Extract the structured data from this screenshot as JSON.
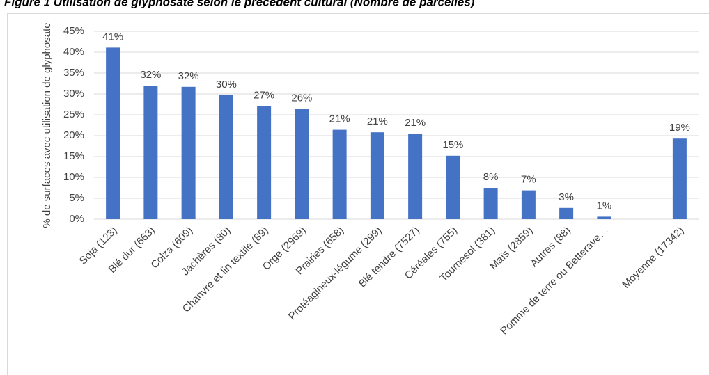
{
  "chart_data": {
    "type": "bar",
    "title": "Figure 1 Utilisation de glyphosate selon le précédent cultural (Nombre de parcelles)",
    "y_label": "% de surfaces avec utilisation de glyphosate",
    "categories": [
      "Soja (123)",
      "Blé dur  (663)",
      "Colza  (609)",
      "Jachères (80)",
      "Chanvre et lin textile (89)",
      "Orge (2969)",
      "Prairies (658)",
      "Protéagineux-légume (299)",
      "Blé tendre (7527)",
      "Céréales (755)",
      "Tournesol (381)",
      "Maïs (2859)",
      "Autres (88)",
      "Pomme de terre ou Betterave…",
      null,
      "Moyenne (17342)"
    ],
    "values": [
      41.1,
      32.0,
      31.7,
      29.7,
      27.1,
      26.4,
      21.4,
      20.8,
      20.5,
      15.2,
      7.5,
      6.9,
      2.7,
      0.6,
      null,
      19.3
    ],
    "value_labels": [
      "41%",
      "32%",
      "32%",
      "30%",
      "27%",
      "26%",
      "21%",
      "21%",
      "21%",
      "15%",
      "8%",
      "7%",
      "3%",
      "1%",
      null,
      "19%"
    ],
    "color": "#4472c4",
    "ylim": [
      0,
      45
    ],
    "yticks": [
      {
        "value": 0,
        "label": "0%"
      },
      {
        "value": 5,
        "label": "5%"
      },
      {
        "value": 10,
        "label": "10%"
      },
      {
        "value": 15,
        "label": "15%"
      },
      {
        "value": 20,
        "label": "20%"
      },
      {
        "value": 25,
        "label": "25%"
      },
      {
        "value": 30,
        "label": "30%"
      },
      {
        "value": 35,
        "label": "35%"
      },
      {
        "value": 40,
        "label": "40%"
      },
      {
        "value": 45,
        "label": "45%"
      }
    ],
    "grid": true
  }
}
